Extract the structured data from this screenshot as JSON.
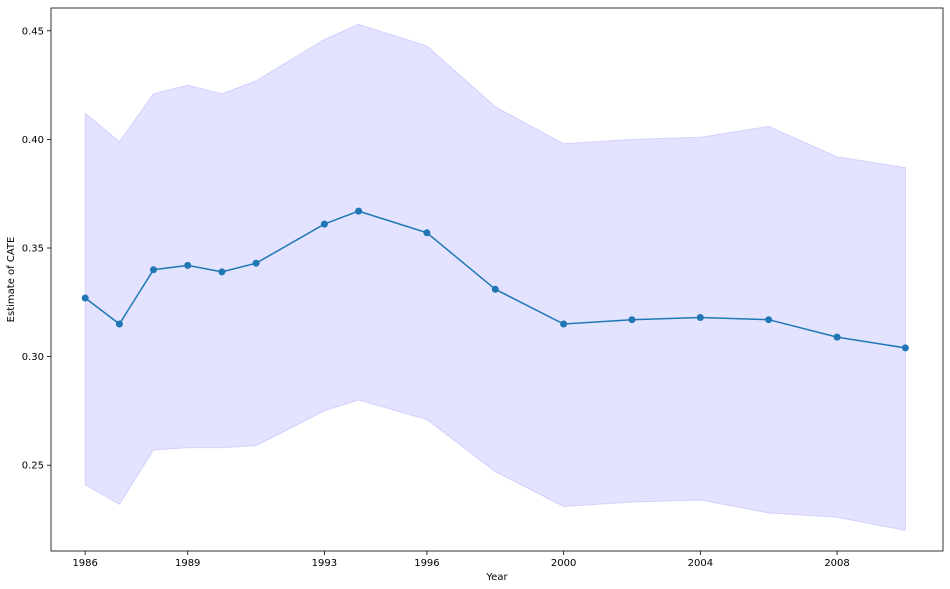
{
  "chart_data": {
    "type": "line",
    "title": "",
    "xlabel": "Year",
    "ylabel": "Estimate of CATE",
    "x_ticks": [
      1986,
      1989,
      1993,
      1996,
      2000,
      2004,
      2008
    ],
    "y_ticks": [
      "0.25",
      "0.30",
      "0.35",
      "0.40",
      "0.45"
    ],
    "xlim": [
      1985,
      2011.1
    ],
    "ylim": [
      0.2105,
      0.4605
    ],
    "grid": false,
    "colors": {
      "line": "#1f77b4",
      "band": "#0000ff"
    },
    "series": [
      {
        "x": [
          1986,
          1987,
          1988,
          1989,
          1990,
          1991,
          1993,
          1994,
          1996,
          1998,
          2000,
          2002,
          2004,
          2006,
          2008,
          2010
        ],
        "y": [
          0.327,
          0.315,
          0.34,
          0.342,
          0.339,
          0.343,
          0.361,
          0.367,
          0.357,
          0.331,
          0.315,
          0.317,
          0.318,
          0.317,
          0.309,
          0.304
        ],
        "lower": [
          0.241,
          0.232,
          0.257,
          0.258,
          0.258,
          0.259,
          0.275,
          0.28,
          0.271,
          0.247,
          0.231,
          0.233,
          0.234,
          0.228,
          0.226,
          0.22
        ],
        "upper": [
          0.412,
          0.399,
          0.421,
          0.425,
          0.421,
          0.427,
          0.446,
          0.453,
          0.443,
          0.415,
          0.398,
          0.4,
          0.401,
          0.406,
          0.392,
          0.387
        ]
      }
    ]
  }
}
